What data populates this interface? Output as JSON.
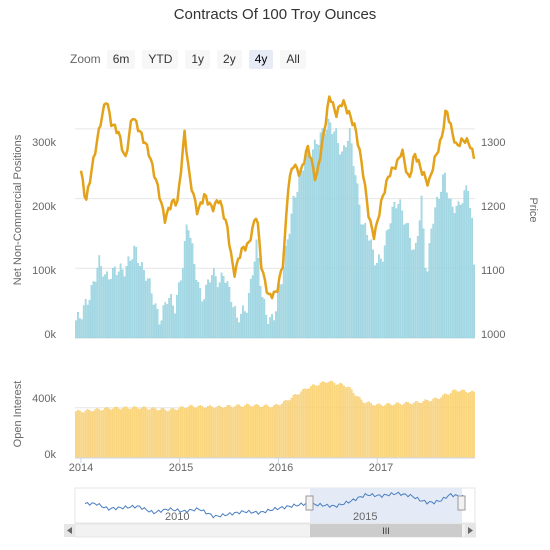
{
  "title": "Contracts Of 100 Troy Ounces",
  "zoom": {
    "label": "Zoom",
    "buttons": [
      "6m",
      "YTD",
      "1y",
      "2y",
      "4y",
      "All"
    ],
    "active": "4y"
  },
  "colors": {
    "position_bars": "#a9dbe6",
    "position_bar_stroke": "#7fc6d6",
    "price_line": "#e3a21a",
    "oi_bars": "#fcd983",
    "oi_bar_stroke": "#f3c45a",
    "grid": "#e6e6e6",
    "navigator_fill": "#dfe7f5",
    "navigator_line": "#4a7fc1"
  },
  "chart_data": [
    {
      "type": "bar+line",
      "ylabel": "Net Non-Commercial Positions",
      "y2label": "Price",
      "yticks": [
        "0k",
        "100k",
        "200k",
        "300k"
      ],
      "y2ticks": [
        "1000",
        "1100",
        "1200",
        "1300"
      ],
      "ylim": [
        0,
        350000
      ],
      "y2lim": [
        1000,
        1350
      ],
      "x_start": "2014-01-01",
      "x_end": "2017-12-31",
      "series": [
        {
          "type": "column",
          "keys": [
            [
              2014.0,
              25000
            ],
            [
              2014.08,
              60000
            ],
            [
              2014.18,
              110000
            ],
            [
              2014.25,
              80000
            ],
            [
              2014.35,
              105000
            ],
            [
              2014.45,
              90000
            ],
            [
              2014.55,
              135000
            ],
            [
              2014.62,
              100000
            ],
            [
              2014.7,
              70000
            ],
            [
              2014.8,
              30000
            ],
            [
              2014.88,
              55000
            ],
            [
              2014.95,
              40000
            ],
            [
              2015.03,
              110000
            ],
            [
              2015.08,
              170000
            ],
            [
              2015.15,
              100000
            ],
            [
              2015.22,
              60000
            ],
            [
              2015.32,
              90000
            ],
            [
              2015.4,
              75000
            ],
            [
              2015.45,
              100000
            ],
            [
              2015.52,
              60000
            ],
            [
              2015.58,
              20000
            ],
            [
              2015.68,
              50000
            ],
            [
              2015.78,
              130000
            ],
            [
              2015.83,
              60000
            ],
            [
              2015.88,
              35000
            ],
            [
              2015.95,
              30000
            ],
            [
              2016.03,
              75000
            ],
            [
              2016.1,
              150000
            ],
            [
              2016.15,
              200000
            ],
            [
              2016.22,
              230000
            ],
            [
              2016.3,
              260000
            ],
            [
              2016.38,
              285000
            ],
            [
              2016.45,
              290000
            ],
            [
              2016.52,
              305000
            ],
            [
              2016.58,
              300000
            ],
            [
              2016.65,
              260000
            ],
            [
              2016.72,
              290000
            ],
            [
              2016.78,
              240000
            ],
            [
              2016.85,
              165000
            ],
            [
              2016.92,
              140000
            ],
            [
              2016.97,
              110000
            ],
            [
              2017.05,
              120000
            ],
            [
              2017.15,
              175000
            ],
            [
              2017.22,
              200000
            ],
            [
              2017.3,
              165000
            ],
            [
              2017.38,
              110000
            ],
            [
              2017.45,
              200000
            ],
            [
              2017.5,
              90000
            ],
            [
              2017.55,
              160000
            ],
            [
              2017.62,
              195000
            ],
            [
              2017.68,
              240000
            ],
            [
              2017.75,
              190000
            ],
            [
              2017.82,
              180000
            ],
            [
              2017.88,
              205000
            ],
            [
              2017.92,
              225000
            ],
            [
              2017.96,
              170000
            ],
            [
              2017.98,
              105000
            ]
          ]
        },
        {
          "type": "line",
          "axis": "right",
          "keys": [
            [
              2014.0,
              1240
            ],
            [
              2014.05,
              1195
            ],
            [
              2014.12,
              1250
            ],
            [
              2014.2,
              1310
            ],
            [
              2014.26,
              1345
            ],
            [
              2014.3,
              1310
            ],
            [
              2014.38,
              1295
            ],
            [
              2014.45,
              1255
            ],
            [
              2014.52,
              1320
            ],
            [
              2014.6,
              1295
            ],
            [
              2014.68,
              1270
            ],
            [
              2014.78,
              1215
            ],
            [
              2014.85,
              1170
            ],
            [
              2014.92,
              1195
            ],
            [
              2014.98,
              1195
            ],
            [
              2015.05,
              1295
            ],
            [
              2015.1,
              1230
            ],
            [
              2015.18,
              1180
            ],
            [
              2015.25,
              1205
            ],
            [
              2015.33,
              1185
            ],
            [
              2015.4,
              1200
            ],
            [
              2015.48,
              1160
            ],
            [
              2015.55,
              1090
            ],
            [
              2015.62,
              1125
            ],
            [
              2015.7,
              1135
            ],
            [
              2015.78,
              1180
            ],
            [
              2015.83,
              1100
            ],
            [
              2015.9,
              1060
            ],
            [
              2015.98,
              1065
            ],
            [
              2016.05,
              1110
            ],
            [
              2016.1,
              1220
            ],
            [
              2016.15,
              1250
            ],
            [
              2016.22,
              1235
            ],
            [
              2016.3,
              1275
            ],
            [
              2016.38,
              1225
            ],
            [
              2016.45,
              1285
            ],
            [
              2016.52,
              1350
            ],
            [
              2016.58,
              1320
            ],
            [
              2016.65,
              1340
            ],
            [
              2016.72,
              1320
            ],
            [
              2016.78,
              1300
            ],
            [
              2016.85,
              1245
            ],
            [
              2016.92,
              1170
            ],
            [
              2016.97,
              1145
            ],
            [
              2017.05,
              1200
            ],
            [
              2017.12,
              1235
            ],
            [
              2017.2,
              1250
            ],
            [
              2017.25,
              1270
            ],
            [
              2017.32,
              1225
            ],
            [
              2017.38,
              1265
            ],
            [
              2017.45,
              1240
            ],
            [
              2017.52,
              1220
            ],
            [
              2017.58,
              1255
            ],
            [
              2017.65,
              1285
            ],
            [
              2017.7,
              1330
            ],
            [
              2017.75,
              1300
            ],
            [
              2017.8,
              1275
            ],
            [
              2017.88,
              1285
            ],
            [
              2017.94,
              1278
            ],
            [
              2017.98,
              1258
            ]
          ]
        }
      ]
    },
    {
      "type": "bar",
      "ylabel": "Open Interest",
      "yticks": [
        "0k",
        "400k"
      ],
      "ylim": [
        0,
        700000
      ],
      "series": [
        {
          "type": "column",
          "keys": [
            [
              2014.0,
              370000
            ],
            [
              2014.3,
              395000
            ],
            [
              2014.6,
              400000
            ],
            [
              2014.9,
              380000
            ],
            [
              2015.1,
              410000
            ],
            [
              2015.4,
              405000
            ],
            [
              2015.7,
              420000
            ],
            [
              2015.95,
              410000
            ],
            [
              2016.05,
              440000
            ],
            [
              2016.3,
              560000
            ],
            [
              2016.5,
              610000
            ],
            [
              2016.7,
              570000
            ],
            [
              2016.85,
              450000
            ],
            [
              2017.0,
              420000
            ],
            [
              2017.2,
              430000
            ],
            [
              2017.4,
              440000
            ],
            [
              2017.6,
              470000
            ],
            [
              2017.8,
              540000
            ],
            [
              2017.98,
              520000
            ]
          ]
        }
      ]
    }
  ],
  "xaxis": {
    "ticks": [
      "2014",
      "2015",
      "2016",
      "2017"
    ]
  },
  "navigator": {
    "labels": [
      "2010",
      "2015"
    ],
    "series_keys": [
      [
        0.0,
        0.55
      ],
      [
        0.03,
        0.55
      ],
      [
        0.06,
        0.35
      ],
      [
        0.1,
        0.4
      ],
      [
        0.14,
        0.45
      ],
      [
        0.18,
        0.2
      ],
      [
        0.22,
        0.35
      ],
      [
        0.26,
        0.25
      ],
      [
        0.3,
        0.35
      ],
      [
        0.34,
        0.05
      ],
      [
        0.38,
        0.15
      ],
      [
        0.42,
        0.25
      ],
      [
        0.46,
        0.2
      ],
      [
        0.5,
        0.35
      ],
      [
        0.54,
        0.45
      ],
      [
        0.58,
        0.55
      ],
      [
        0.62,
        0.5
      ],
      [
        0.66,
        0.45
      ],
      [
        0.7,
        0.65
      ],
      [
        0.74,
        0.9
      ],
      [
        0.78,
        0.85
      ],
      [
        0.82,
        0.95
      ],
      [
        0.86,
        0.85
      ],
      [
        0.88,
        0.7
      ],
      [
        0.9,
        0.6
      ],
      [
        0.92,
        0.6
      ],
      [
        0.94,
        0.7
      ],
      [
        0.96,
        0.9
      ],
      [
        0.98,
        0.85
      ],
      [
        1.0,
        0.8
      ]
    ],
    "selection": [
      0.4,
      1.0
    ],
    "scrollbar_grip": "III"
  }
}
